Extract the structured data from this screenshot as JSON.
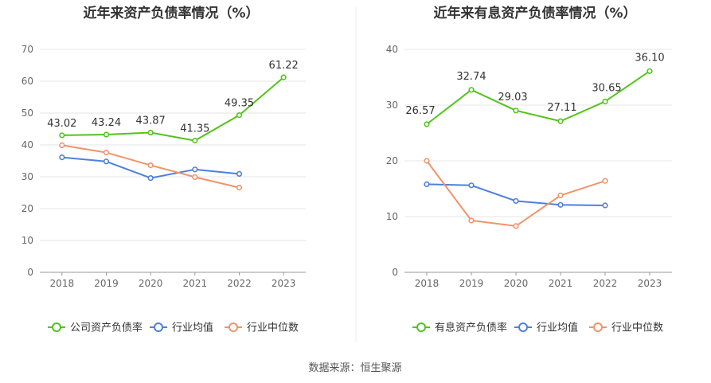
{
  "source": "数据来源：恒生聚源",
  "chart_data": [
    {
      "type": "line",
      "title": "近年来资产负债率情况（%）",
      "categories": [
        "2018",
        "2019",
        "2020",
        "2021",
        "2022",
        "2023"
      ],
      "ylim": [
        0,
        70
      ],
      "yticks": [
        0,
        10,
        20,
        30,
        40,
        50,
        60,
        70
      ],
      "grid": true,
      "legend_position": "bottom",
      "series": [
        {
          "name": "公司资产负债率",
          "color": "#52c41a",
          "values": [
            43.02,
            43.24,
            43.87,
            41.35,
            49.35,
            61.22
          ],
          "labels": true
        },
        {
          "name": "行业均值",
          "color": "#4e7fe0",
          "values": [
            36.1,
            34.8,
            29.6,
            32.3,
            30.9,
            null
          ],
          "labels": false
        },
        {
          "name": "行业中位数",
          "color": "#f2936b",
          "values": [
            39.9,
            37.6,
            33.6,
            29.9,
            26.6,
            null
          ],
          "labels": false
        }
      ]
    },
    {
      "type": "line",
      "title": "近年来有息资产负债率情况（%）",
      "categories": [
        "2018",
        "2019",
        "2020",
        "2021",
        "2022",
        "2023"
      ],
      "ylim": [
        0,
        40
      ],
      "yticks": [
        0,
        10,
        20,
        30,
        40
      ],
      "grid": true,
      "legend_position": "bottom",
      "series": [
        {
          "name": "有息资产负债率",
          "color": "#52c41a",
          "values": [
            26.57,
            32.74,
            29.03,
            27.11,
            30.65,
            36.1
          ],
          "labels": true
        },
        {
          "name": "行业均值",
          "color": "#4e7fe0",
          "values": [
            15.8,
            15.6,
            12.8,
            12.1,
            12.0,
            null
          ],
          "labels": false
        },
        {
          "name": "行业中位数",
          "color": "#f2936b",
          "values": [
            20.0,
            9.3,
            8.3,
            13.8,
            16.4,
            null
          ],
          "labels": false
        }
      ]
    }
  ]
}
